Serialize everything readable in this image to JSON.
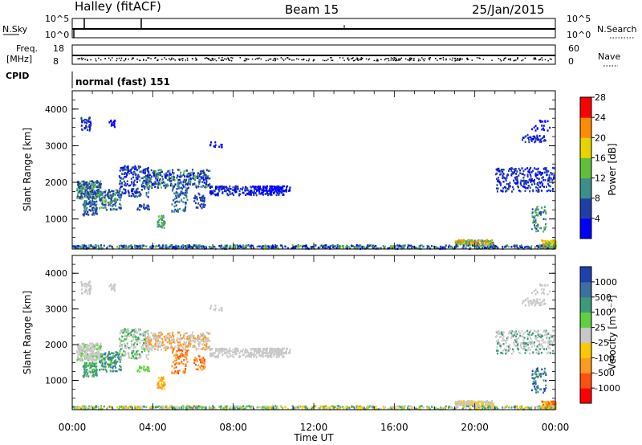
{
  "header": {
    "station": "Halley (fitACF)",
    "beam": "Beam 15",
    "date": "25/Jan/2015"
  },
  "strips": {
    "nsky_label": "N.Sky",
    "nsky_ticks": [
      "10^5",
      "10^0"
    ],
    "nsearch_label": "N.Search",
    "nsearch_ticks": [
      "10^5",
      "10^0"
    ],
    "freq_label": "Freq.",
    "freq_unit": "[MHz]",
    "freq_ticks": [
      "18",
      "8"
    ],
    "nave_label": "Nave",
    "nave_ticks": [
      "60",
      "0"
    ],
    "cpid_label": "CPID",
    "cpid_value": "normal (fast) 151"
  },
  "chart_data": [
    {
      "type": "heatmap",
      "name": "power",
      "ylabel": "Slant Range [km]",
      "xlabel": "",
      "yticks": [
        "1000",
        "2000",
        "3000",
        "4000"
      ],
      "ylim": [
        180,
        4500
      ],
      "colorbar": {
        "label": "Power [dB]",
        "ticks": [
          "4",
          "8",
          "12",
          "16",
          "20",
          "24",
          "28"
        ],
        "colors": [
          "#0000ff",
          "#1f3fa8",
          "#3b8e8c",
          "#5fbf3a",
          "#e6d400",
          "#ff8c00",
          "#ff0000"
        ]
      }
    },
    {
      "type": "heatmap",
      "name": "velocity",
      "ylabel": "Slant Range [km]",
      "xlabel": "Time UT",
      "yticks": [
        "1000",
        "2000",
        "3000",
        "4000"
      ],
      "xticks": [
        "00:00",
        "04:00",
        "08:00",
        "12:00",
        "16:00",
        "20:00",
        "00:00"
      ],
      "xlim": [
        0,
        24
      ],
      "ylim": [
        180,
        4500
      ],
      "colorbar": {
        "label": "Velocity [m s⁻¹]",
        "ticks": [
          "1000",
          "500",
          "100",
          "25",
          "-25",
          "-100",
          "-500",
          "-1000"
        ],
        "colors": [
          "#2040b0",
          "#3b70a0",
          "#3c9a7a",
          "#60d040",
          "#c8c8c8",
          "#ffc800",
          "#ff9a20",
          "#ff5010",
          "#ff0000"
        ]
      }
    }
  ],
  "colors": {
    "ground": "#c8c8c8",
    "frame": "#000000"
  }
}
